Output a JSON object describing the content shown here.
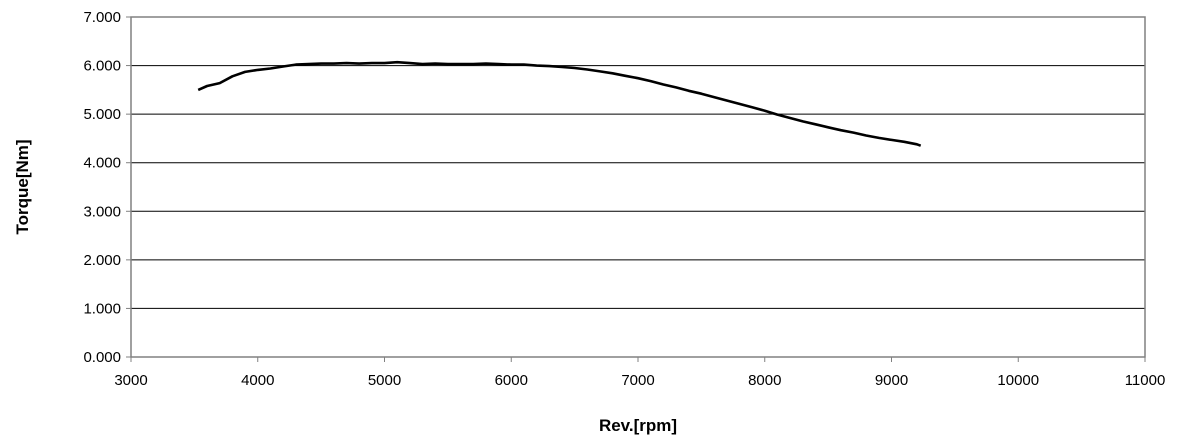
{
  "chart_data": {
    "type": "line",
    "title": "",
    "xlabel": "Rev.[rpm]",
    "ylabel": "Torque[Nm]",
    "xlim": [
      3000,
      11000
    ],
    "ylim": [
      0,
      7
    ],
    "x_ticks": [
      3000,
      4000,
      5000,
      6000,
      7000,
      8000,
      9000,
      10000,
      11000
    ],
    "x_tick_labels": [
      "3000",
      "4000",
      "5000",
      "6000",
      "7000",
      "8000",
      "9000",
      "10000",
      "11000"
    ],
    "y_ticks": [
      0,
      1,
      2,
      3,
      4,
      5,
      6,
      7
    ],
    "y_tick_labels": [
      "0.000",
      "1.000",
      "2.000",
      "3.000",
      "4.000",
      "5.000",
      "6.000",
      "7.000"
    ],
    "grid": "horizontal",
    "legend": "none",
    "line_color": "#000000",
    "series": [
      {
        "x": [
          3530,
          3600,
          3700,
          3800,
          3900,
          4000,
          4100,
          4200,
          4300,
          4400,
          4500,
          4600,
          4700,
          4800,
          4900,
          5000,
          5100,
          5200,
          5300,
          5400,
          5500,
          5600,
          5700,
          5800,
          5900,
          6000,
          6100,
          6200,
          6300,
          6400,
          6500,
          6600,
          6700,
          6800,
          6900,
          7000,
          7100,
          7200,
          7300,
          7400,
          7500,
          7600,
          7700,
          7800,
          7900,
          8000,
          8100,
          8200,
          8300,
          8400,
          8500,
          8600,
          8700,
          8800,
          8900,
          9000,
          9100,
          9200,
          9230
        ],
        "y": [
          5.5,
          5.58,
          5.64,
          5.78,
          5.87,
          5.91,
          5.94,
          5.98,
          6.02,
          6.03,
          6.04,
          6.04,
          6.05,
          6.04,
          6.05,
          6.05,
          6.07,
          6.05,
          6.03,
          6.04,
          6.03,
          6.03,
          6.03,
          6.04,
          6.03,
          6.02,
          6.02,
          6.0,
          5.99,
          5.97,
          5.95,
          5.92,
          5.88,
          5.84,
          5.79,
          5.74,
          5.68,
          5.61,
          5.55,
          5.48,
          5.42,
          5.35,
          5.28,
          5.21,
          5.14,
          5.07,
          4.99,
          4.92,
          4.85,
          4.79,
          4.73,
          4.67,
          4.62,
          4.56,
          4.51,
          4.47,
          4.43,
          4.38,
          4.35
        ]
      }
    ]
  }
}
